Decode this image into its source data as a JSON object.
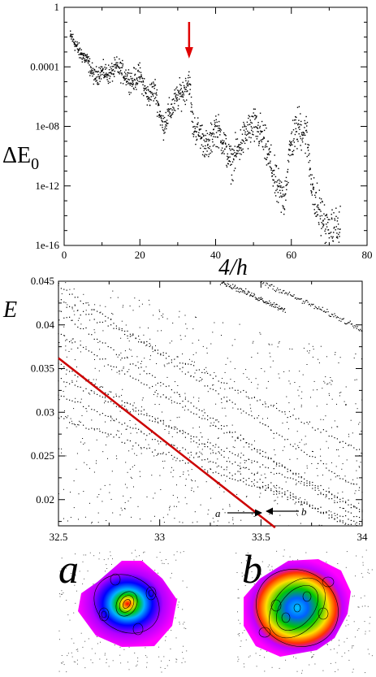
{
  "chart_data": [
    {
      "type": "scatter",
      "ylabel": "ΔE",
      "ylabel_sub": "0",
      "xlabel": "4/h",
      "xlim": [
        0,
        80
      ],
      "ylim_log10": [
        -16,
        0
      ],
      "y_log_scale": true,
      "xticks": [
        "0",
        "20",
        "40",
        "60",
        "80"
      ],
      "yticks": [
        "1",
        "0.0001",
        "1e-08",
        "1e-12",
        "1e-16"
      ],
      "marker_color": "#000000",
      "arrow_color": "#e00000",
      "arrow_x": 33,
      "series": [
        {
          "x": [
            2,
            4,
            6,
            8,
            10,
            12,
            14,
            16,
            18,
            20,
            22,
            24,
            26,
            28,
            30,
            32,
            33,
            34,
            36,
            38,
            40,
            42,
            44,
            46,
            48,
            50,
            52,
            54,
            56,
            58,
            60,
            62,
            64,
            66,
            68,
            70,
            72
          ],
          "y": [
            0.01,
            0.001,
            0.0003,
            2e-05,
            5e-05,
            3e-05,
            0.0001,
            3e-05,
            1e-05,
            3e-05,
            1e-06,
            3e-06,
            1e-08,
            1e-07,
            1e-06,
            3e-06,
            2e-05,
            1e-08,
            3e-09,
            3e-10,
            1e-08,
            1e-09,
            3e-11,
            3e-10,
            3e-09,
            1e-08,
            3e-09,
            1e-10,
            1e-12,
            1e-13,
            1e-09,
            1e-08,
            3e-09,
            1e-13,
            1e-14,
            3e-16,
            1e-15
          ]
        }
      ]
    },
    {
      "type": "scatter",
      "ylabel": "E",
      "xlim": [
        32.5,
        34
      ],
      "ylim": [
        0.017,
        0.045
      ],
      "xticks": [
        "32.5",
        "33",
        "33.5",
        "34"
      ],
      "yticks": [
        "0.02",
        "0.025",
        "0.03",
        "0.035",
        "0.04",
        "0.045"
      ],
      "highlight_color": "#cc0000",
      "highlight_line": {
        "x": [
          32.5,
          33.57
        ],
        "y": [
          0.0362,
          0.0168
        ]
      },
      "state_labels": [
        "a",
        "b"
      ],
      "series": [
        {
          "x": [
            32.5,
            34
          ],
          "y": [
            0.0445,
            0.021
          ]
        },
        {
          "x": [
            32.5,
            34
          ],
          "y": [
            0.0428,
            0.0255
          ]
        },
        {
          "x": [
            32.5,
            34
          ],
          "y": [
            0.0415,
            0.0175
          ]
        },
        {
          "x": [
            32.5,
            34
          ],
          "y": [
            0.039,
            0.0185
          ]
        },
        {
          "x": [
            32.5,
            34
          ],
          "y": [
            0.0355,
            0.016
          ]
        },
        {
          "x": [
            32.5,
            34
          ],
          "y": [
            0.0338,
            0.019
          ]
        },
        {
          "x": [
            32.5,
            34
          ],
          "y": [
            0.032,
            0.0165
          ]
        },
        {
          "x": [
            32.5,
            34
          ],
          "y": [
            0.0295,
            0.0172
          ]
        },
        {
          "x": [
            33.5,
            34
          ],
          "y": [
            0.045,
            0.0395
          ]
        },
        {
          "x": [
            33.3,
            33.62
          ],
          "y": [
            0.045,
            0.0417
          ]
        }
      ]
    },
    {
      "type": "heatmap",
      "panels": [
        "a",
        "b"
      ]
    }
  ]
}
